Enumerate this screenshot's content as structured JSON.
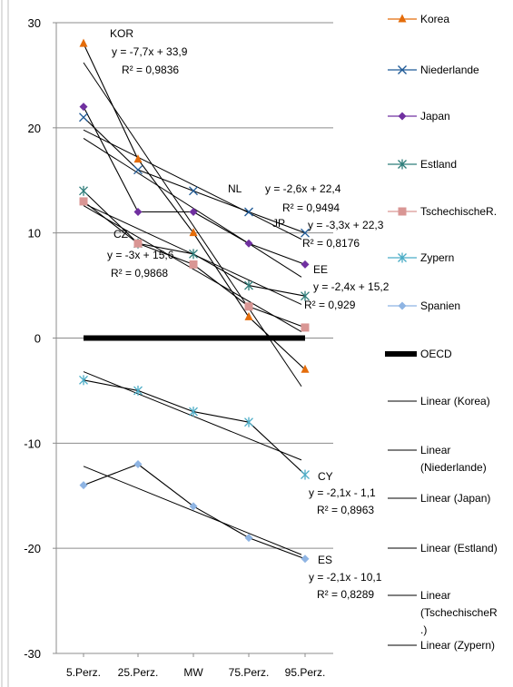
{
  "chart_data": {
    "type": "line",
    "categories": [
      "5.Perz.",
      "25.Perz.",
      "MW",
      "75.Perz.",
      "95.Perz."
    ],
    "ylim": [
      -30,
      30
    ],
    "yticks": [
      -30,
      -20,
      -10,
      0,
      10,
      20,
      30
    ],
    "grid": "horizontal",
    "legend_position": "right",
    "series": [
      {
        "name": "Korea",
        "values": [
          28,
          17,
          10,
          2,
          -3
        ],
        "color": "#e46c0a",
        "marker": "triangle"
      },
      {
        "name": "Niederlande",
        "values": [
          21,
          16,
          14,
          12,
          10
        ],
        "color": "#1f5a96",
        "marker": "x"
      },
      {
        "name": "Japan",
        "values": [
          22,
          12,
          12,
          9,
          7
        ],
        "color": "#7030a0",
        "marker": "diamond"
      },
      {
        "name": "Estland",
        "values": [
          14,
          9,
          8,
          5,
          4
        ],
        "color": "#2e7d7a",
        "marker": "star"
      },
      {
        "name": "TschechischeR.",
        "values": [
          13,
          9,
          7,
          3,
          1
        ],
        "color": "#d99694",
        "marker": "square"
      },
      {
        "name": "Zypern",
        "values": [
          -4,
          -5,
          -7,
          -8,
          -13
        ],
        "color": "#4bacc6",
        "marker": "star"
      },
      {
        "name": "Spanien",
        "values": [
          -14,
          -12,
          -16,
          -19,
          -21
        ],
        "color": "#8eb4e3",
        "marker": "diamond"
      },
      {
        "name": "OECD",
        "values": [
          0,
          0,
          0,
          0,
          0
        ],
        "color": "#000000",
        "marker": "none",
        "thick": true
      }
    ],
    "trendlines": [
      {
        "series": "Korea",
        "slope": -7.7,
        "intercept": 33.9
      },
      {
        "series": "Niederlande",
        "slope": -2.6,
        "intercept": 22.4
      },
      {
        "series": "Japan",
        "slope": -3.3,
        "intercept": 22.3
      },
      {
        "series": "Estland",
        "slope": -2.4,
        "intercept": 15.2
      },
      {
        "series": "TschechischeR.",
        "slope": -3,
        "intercept": 15.6
      },
      {
        "series": "Zypern",
        "slope": -2.1,
        "intercept": -1.1
      },
      {
        "series": "Spanien",
        "slope": -2.1,
        "intercept": -10.1
      }
    ],
    "legend_extra": [
      [
        "Linear (Korea)"
      ],
      [
        "Linear",
        "(Niederlande)"
      ],
      [
        "Linear (Japan)"
      ],
      [
        "Linear (Estland)"
      ],
      [
        "Linear",
        "(TschechischeR",
        ".)"
      ],
      [
        "Linear (Zypern)"
      ]
    ],
    "annotations": [
      {
        "lines": [
          "KOR",
          "y = -7,7x + 33,9",
          "R² = 0,9836"
        ]
      },
      {
        "lines": [
          "NL"
        ]
      },
      {
        "lines": [
          "y = -2,6x + 22,4",
          "R² = 0,9494"
        ]
      },
      {
        "lines": [
          "JP"
        ]
      },
      {
        "lines": [
          "y = -3,3x + 22,3",
          "R² = 0,8176"
        ]
      },
      {
        "lines": [
          "CZ",
          "y = -3x + 15,6",
          "R² = 0,9868"
        ]
      },
      {
        "lines": [
          "EE",
          "y = -2,4x + 15,2",
          "R² = 0,929"
        ]
      },
      {
        "lines": [
          "CY",
          "y = -2,1x - 1,1",
          "R² = 0,8963"
        ]
      },
      {
        "lines": [
          "ES",
          "y = -2,1x - 10,1",
          "R² = 0,8289"
        ]
      }
    ]
  }
}
